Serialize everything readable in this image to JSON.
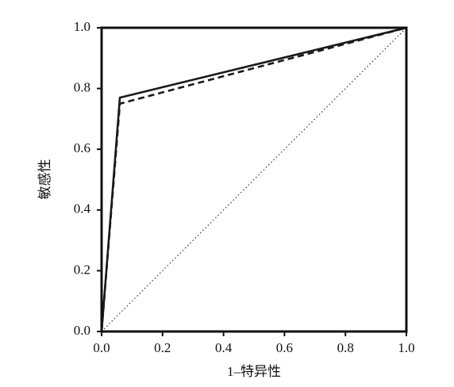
{
  "chart_data": {
    "type": "line",
    "xlabel": "1–特异性",
    "ylabel": "敏感性",
    "xlim": [
      0,
      1
    ],
    "ylim": [
      0,
      1
    ],
    "xticks": [
      {
        "value": 0,
        "label": "0.0"
      },
      0.2,
      0.4,
      0.6,
      0.8,
      {
        "value": 1,
        "label": "1.0"
      }
    ],
    "yticks": [
      {
        "value": 0,
        "label": "0.0"
      },
      0.2,
      0.4,
      0.6,
      0.8,
      {
        "value": 1,
        "label": "1.0"
      }
    ],
    "grid": false,
    "series": [
      {
        "color": "#1a1a1a",
        "dash": "solid",
        "x": [
          0,
          0.06,
          1
        ],
        "values": [
          0,
          0.77,
          1
        ]
      },
      {
        "color": "#1a1a1a",
        "dash": "dashed",
        "x": [
          0,
          0.06,
          1
        ],
        "values": [
          0,
          0.75,
          1
        ]
      },
      {
        "color": "#333333",
        "dash": "dotted",
        "x": [
          0,
          1
        ],
        "values": [
          0,
          1
        ]
      }
    ]
  }
}
